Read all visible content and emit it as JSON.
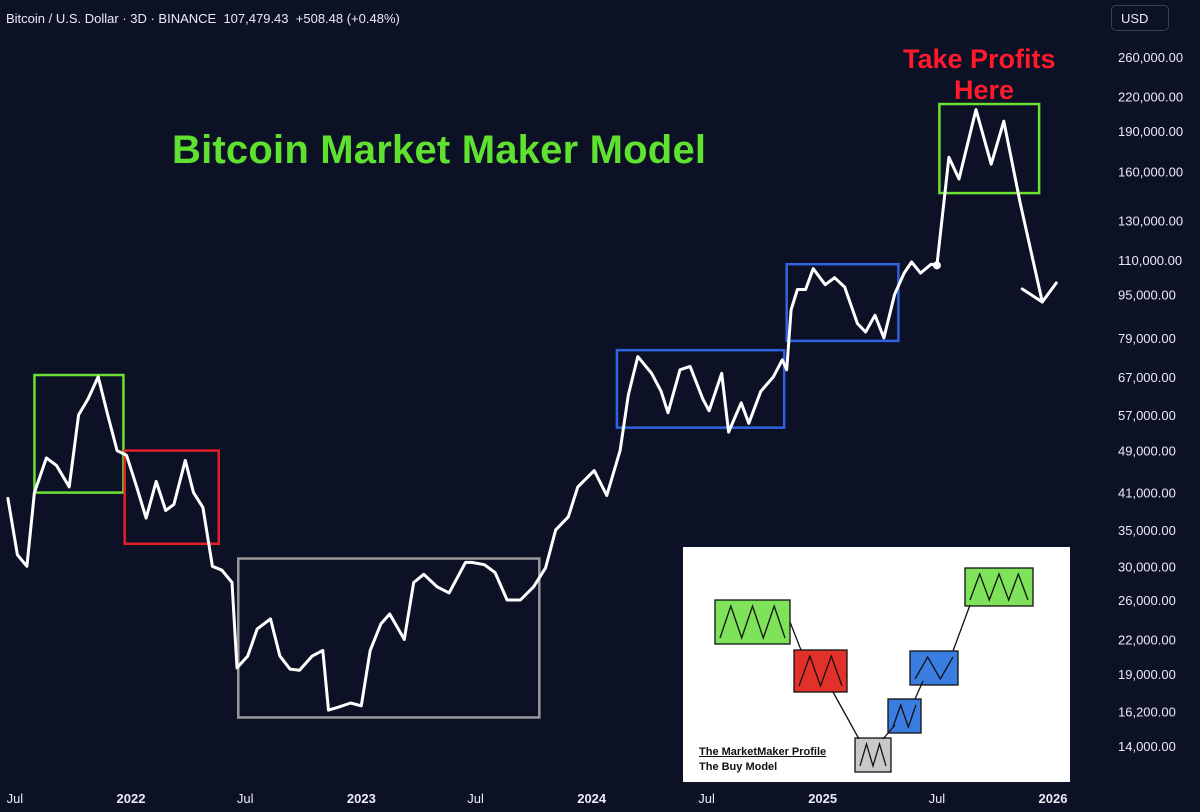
{
  "header": {
    "symbol": "Bitcoin / U.S. Dollar · 3D · BINANCE",
    "price": "107,479.43",
    "change": "+508.48 (+0.48%)"
  },
  "currency_button": "USD",
  "annotations": {
    "take_profits_line1": "Take Profits",
    "take_profits_line2": "Here"
  },
  "inset": {
    "title": "The MarketMaker Profile",
    "subtitle": "The Buy Model"
  },
  "colors": {
    "background": "#0d1126",
    "price_line": "#ffffff",
    "title": "#5fe12f",
    "take_profits": "#ff1a2b",
    "box_green": "#6ae132",
    "box_red": "#e3202a",
    "box_gray": "#9a9a9a",
    "box_blue": "#2f63e0"
  },
  "chart_data": {
    "type": "line",
    "title": "Bitcoin Market Maker Model",
    "y_scale": "log",
    "y_ticks": [
      "260,000.00",
      "220,000.00",
      "190,000.00",
      "160,000.00",
      "130,000.00",
      "110,000.00",
      "95,000.00",
      "79,000.00",
      "67,000.00",
      "57,000.00",
      "49,000.00",
      "41,000.00",
      "35,000.00",
      "30,000.00",
      "26,000.00",
      "22,000.00",
      "19,000.00",
      "16,200.00",
      "14,000.00"
    ],
    "x_ticks": [
      {
        "label": "Jul",
        "date": "2021-07-01",
        "bold": false
      },
      {
        "label": "2022",
        "date": "2022-01-01",
        "bold": true
      },
      {
        "label": "Jul",
        "date": "2022-07-01",
        "bold": false
      },
      {
        "label": "2023",
        "date": "2023-01-01",
        "bold": true
      },
      {
        "label": "Jul",
        "date": "2023-07-01",
        "bold": false
      },
      {
        "label": "2024",
        "date": "2024-01-01",
        "bold": true
      },
      {
        "label": "Jul",
        "date": "2024-07-01",
        "bold": false
      },
      {
        "label": "2025",
        "date": "2025-01-01",
        "bold": true
      },
      {
        "label": "Jul",
        "date": "2025-07-01",
        "bold": false
      },
      {
        "label": "2026",
        "date": "2026-01-01",
        "bold": true
      }
    ],
    "series": [
      {
        "role": "price",
        "x": [
          "2021-06-20",
          "2021-07-05",
          "2021-07-20",
          "2021-08-01",
          "2021-08-20",
          "2021-09-05",
          "2021-09-25",
          "2021-10-10",
          "2021-10-25",
          "2021-11-10",
          "2021-11-25",
          "2021-12-10",
          "2021-12-25",
          "2022-01-10",
          "2022-01-25",
          "2022-02-10",
          "2022-02-25",
          "2022-03-10",
          "2022-03-28",
          "2022-04-10",
          "2022-04-25",
          "2022-05-10",
          "2022-05-25",
          "2022-06-10",
          "2022-06-18",
          "2022-07-05",
          "2022-07-20",
          "2022-08-10",
          "2022-08-25",
          "2022-09-10",
          "2022-09-25",
          "2022-10-15",
          "2022-11-01",
          "2022-11-10",
          "2022-11-25",
          "2022-12-15",
          "2023-01-01",
          "2023-01-15",
          "2023-02-01",
          "2023-02-15",
          "2023-03-10",
          "2023-03-25",
          "2023-04-10",
          "2023-05-01",
          "2023-05-20",
          "2023-06-15",
          "2023-06-25",
          "2023-07-15",
          "2023-08-01",
          "2023-08-20",
          "2023-09-10",
          "2023-10-01",
          "2023-10-20",
          "2023-11-05",
          "2023-11-25",
          "2023-12-10",
          "2024-01-05",
          "2024-01-25",
          "2024-02-15",
          "2024-02-28",
          "2024-03-14",
          "2024-04-05",
          "2024-04-20",
          "2024-05-01",
          "2024-05-20",
          "2024-06-05",
          "2024-06-25",
          "2024-07-05",
          "2024-07-25",
          "2024-08-05",
          "2024-08-25",
          "2024-09-06",
          "2024-09-25",
          "2024-10-15",
          "2024-10-29",
          "2024-11-05",
          "2024-11-12",
          "2024-11-22",
          "2024-12-05",
          "2024-12-17",
          "2025-01-05",
          "2025-01-20",
          "2025-02-05",
          "2025-02-25",
          "2025-03-10",
          "2025-03-25",
          "2025-04-08",
          "2025-04-25",
          "2025-05-10",
          "2025-05-22",
          "2025-06-05",
          "2025-06-22",
          "2025-07-01"
        ],
        "y": [
          40000,
          31500,
          30000,
          41000,
          47500,
          46000,
          42000,
          57000,
          61000,
          67000,
          57000,
          49000,
          48000,
          42000,
          36800,
          43000,
          38000,
          39000,
          47000,
          41000,
          38500,
          30000,
          29500,
          28000,
          19500,
          20500,
          23000,
          24000,
          20500,
          19400,
          19300,
          20500,
          21000,
          16300,
          16500,
          16800,
          16600,
          21000,
          23500,
          24500,
          22000,
          28000,
          29000,
          27500,
          26800,
          30500,
          30500,
          30200,
          29200,
          26000,
          26000,
          27500,
          29800,
          35000,
          37000,
          42000,
          45000,
          40500,
          49000,
          62000,
          73000,
          68000,
          63000,
          57500,
          69000,
          70000,
          61000,
          58000,
          68000,
          53000,
          60000,
          55000,
          63000,
          67000,
          72000,
          69000,
          89000,
          97000,
          97000,
          106000,
          99000,
          102000,
          98000,
          84000,
          81000,
          87000,
          79000,
          95000,
          104000,
          109000,
          104000,
          108000,
          107479
        ]
      },
      {
        "role": "projection",
        "x": [
          "2025-07-01",
          "2025-07-20",
          "2025-08-05",
          "2025-09-01",
          "2025-09-25",
          "2025-10-15",
          "2025-11-10",
          "2025-12-15"
        ],
        "y": [
          107479,
          170000,
          155000,
          208000,
          165000,
          198000,
          140000,
          92000
        ]
      }
    ],
    "boxes": [
      {
        "color": "green",
        "x": [
          "2021-08-01",
          "2021-12-20"
        ],
        "y": [
          41000,
          67500
        ]
      },
      {
        "color": "red",
        "x": [
          "2021-12-22",
          "2022-05-20"
        ],
        "y": [
          33000,
          49000
        ]
      },
      {
        "color": "gray",
        "x": [
          "2022-06-20",
          "2023-10-10"
        ],
        "y": [
          15800,
          31000
        ]
      },
      {
        "color": "blue",
        "x": [
          "2024-02-10",
          "2024-11-01"
        ],
        "y": [
          54000,
          75000
        ]
      },
      {
        "color": "blue",
        "x": [
          "2024-11-05",
          "2025-05-01"
        ],
        "y": [
          78000,
          108000
        ]
      },
      {
        "color": "green",
        "x": [
          "2025-07-05",
          "2025-12-10"
        ],
        "y": [
          146000,
          213000
        ]
      }
    ]
  },
  "inset_data": {
    "type": "diagram",
    "boxes": [
      {
        "color": "green",
        "wave": [
          0,
          1,
          0,
          1,
          0,
          1,
          0
        ]
      },
      {
        "color": "red",
        "wave": [
          0,
          1,
          0,
          1,
          0
        ]
      },
      {
        "color": "gray",
        "wave": [
          0,
          1,
          0,
          1,
          0
        ]
      },
      {
        "color": "blue",
        "wave": [
          0,
          1,
          0,
          1
        ]
      },
      {
        "color": "blue",
        "wave": [
          0,
          1,
          0,
          1
        ]
      },
      {
        "color": "green",
        "wave": [
          0,
          1,
          0,
          1,
          0,
          1,
          0
        ]
      }
    ]
  }
}
